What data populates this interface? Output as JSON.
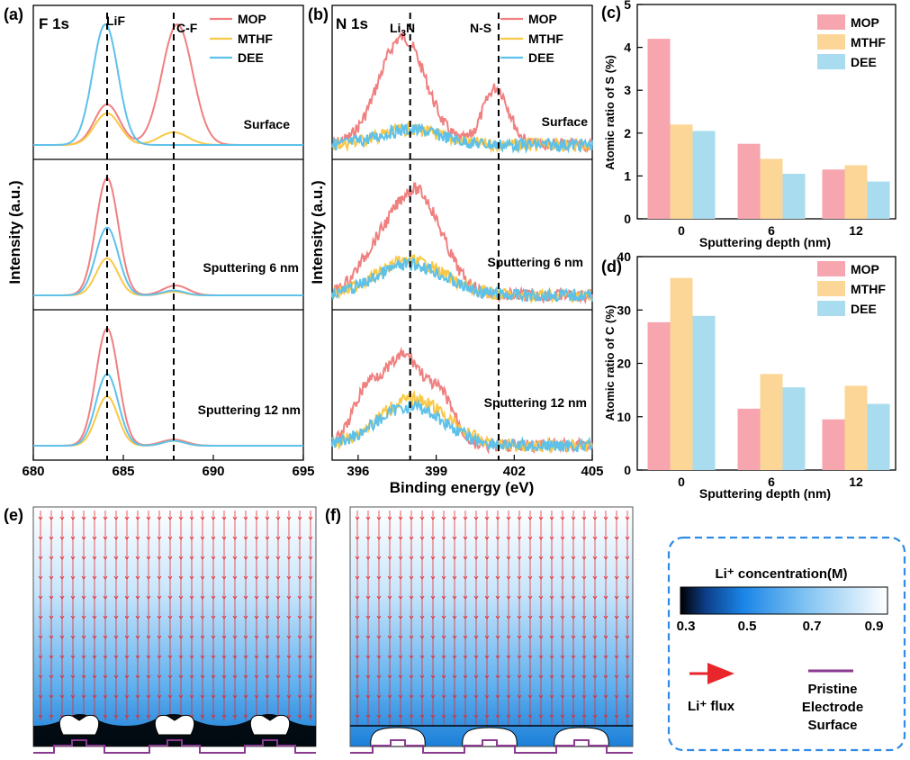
{
  "colors": {
    "MOP": "#f08080",
    "MTHF": "#f9c846",
    "DEE": "#5ec1ea",
    "MOP_bar": "#f7a5ae",
    "MTHF_bar": "#fcd697",
    "DEE_bar": "#a9dcee",
    "flux": "#e8262b",
    "electrode": "#8a3b8f",
    "legend_border": "#2f8be6"
  },
  "panel_labels": {
    "a": "(a)",
    "b": "(b)",
    "c": "(c)",
    "d": "(d)",
    "e": "(e)",
    "f": "(f)"
  },
  "legend_names": [
    "MOP",
    "MTHF",
    "DEE"
  ],
  "chart_data": [
    {
      "id": "a",
      "type": "line",
      "title": "F 1s",
      "xlabel": "",
      "ylabel": "Intensity (a.u.)",
      "xlim": [
        680,
        695
      ],
      "xticks": [
        "680",
        "685",
        "690",
        "695"
      ],
      "reference_lines": [
        {
          "x": 684.1,
          "label": "LiF"
        },
        {
          "x": 687.8,
          "label": "C-F"
        }
      ],
      "subpanels": [
        {
          "label": "Surface",
          "series": [
            {
              "name": "MOP",
              "peaks": [
                {
                  "x": 684.1,
                  "height": 0.32,
                  "width": 0.7
                },
                {
                  "x": 688.0,
                  "height": 0.95,
                  "width": 0.85
                }
              ]
            },
            {
              "name": "MTHF",
              "peaks": [
                {
                  "x": 684.1,
                  "height": 0.25,
                  "width": 0.7
                },
                {
                  "x": 687.8,
                  "height": 0.1,
                  "width": 0.8
                }
              ]
            },
            {
              "name": "DEE",
              "peaks": [
                {
                  "x": 684.0,
                  "height": 0.95,
                  "width": 0.7
                }
              ]
            }
          ]
        },
        {
          "label": "Sputtering 6 nm",
          "series": [
            {
              "name": "MOP",
              "peaks": [
                {
                  "x": 684.1,
                  "height": 0.95,
                  "width": 0.62
                },
                {
                  "x": 687.9,
                  "height": 0.08,
                  "width": 0.7
                }
              ]
            },
            {
              "name": "MTHF",
              "peaks": [
                {
                  "x": 684.1,
                  "height": 0.3,
                  "width": 0.6
                },
                {
                  "x": 687.8,
                  "height": 0.03,
                  "width": 0.6
                }
              ]
            },
            {
              "name": "DEE",
              "peaks": [
                {
                  "x": 684.1,
                  "height": 0.55,
                  "width": 0.62
                },
                {
                  "x": 687.8,
                  "height": 0.04,
                  "width": 0.6
                }
              ]
            }
          ]
        },
        {
          "label": "Sputtering 12 nm",
          "series": [
            {
              "name": "MOP",
              "peaks": [
                {
                  "x": 684.1,
                  "height": 0.95,
                  "width": 0.62
                },
                {
                  "x": 687.8,
                  "height": 0.05,
                  "width": 0.7
                }
              ]
            },
            {
              "name": "MTHF",
              "peaks": [
                {
                  "x": 684.1,
                  "height": 0.4,
                  "width": 0.6
                },
                {
                  "x": 687.8,
                  "height": 0.04,
                  "width": 0.6
                }
              ]
            },
            {
              "name": "DEE",
              "peaks": [
                {
                  "x": 684.1,
                  "height": 0.58,
                  "width": 0.62
                },
                {
                  "x": 687.8,
                  "height": 0.04,
                  "width": 0.6
                }
              ]
            }
          ]
        }
      ]
    },
    {
      "id": "b",
      "type": "line",
      "title": "N 1s",
      "xlabel": "Binding energy (eV)",
      "ylabel": "Intensity (a.u.)",
      "xlim": [
        395,
        405
      ],
      "xticks": [
        "396",
        "399",
        "402",
        "405"
      ],
      "reference_lines": [
        {
          "x": 398.0,
          "label": "Li3N"
        },
        {
          "x": 401.4,
          "label": "N-S"
        }
      ],
      "subpanels": [
        {
          "label": "Surface",
          "series": [
            {
              "name": "MOP",
              "peaks": [
                {
                  "x": 397.7,
                  "height": 0.85,
                  "width": 0.9
                },
                {
                  "x": 401.3,
                  "height": 0.45,
                  "width": 0.5
                }
              ]
            },
            {
              "name": "MTHF",
              "peaks": [
                {
                  "x": 398.0,
                  "height": 0.12,
                  "width": 1.2
                }
              ]
            },
            {
              "name": "DEE",
              "peaks": [
                {
                  "x": 398.0,
                  "height": 0.12,
                  "width": 1.2
                }
              ]
            }
          ]
        },
        {
          "label": "Sputtering 6 nm",
          "series": [
            {
              "name": "MOP",
              "peaks": [
                {
                  "x": 398.2,
                  "height": 0.85,
                  "width": 1.0
                },
                {
                  "x": 396.5,
                  "height": 0.2,
                  "width": 0.7
                }
              ]
            },
            {
              "name": "MTHF",
              "peaks": [
                {
                  "x": 398.0,
                  "height": 0.28,
                  "width": 1.3
                }
              ]
            },
            {
              "name": "DEE",
              "peaks": [
                {
                  "x": 398.0,
                  "height": 0.25,
                  "width": 1.3
                }
              ]
            }
          ]
        },
        {
          "label": "Sputtering 12 nm",
          "series": [
            {
              "name": "MOP",
              "peaks": [
                {
                  "x": 397.8,
                  "height": 0.72,
                  "width": 0.8
                },
                {
                  "x": 396.3,
                  "height": 0.38,
                  "width": 0.55
                },
                {
                  "x": 399.3,
                  "height": 0.3,
                  "width": 0.5
                }
              ]
            },
            {
              "name": "MTHF",
              "peaks": [
                {
                  "x": 398.1,
                  "height": 0.38,
                  "width": 1.3
                }
              ]
            },
            {
              "name": "DEE",
              "peaks": [
                {
                  "x": 398.0,
                  "height": 0.32,
                  "width": 1.3
                }
              ]
            }
          ]
        }
      ]
    },
    {
      "id": "c",
      "type": "bar",
      "xlabel": "Sputtering depth (nm)",
      "ylabel": "Atomic ratio of S (%)",
      "ylim": [
        0,
        5
      ],
      "yticks": [
        "0",
        "1",
        "2",
        "3",
        "4",
        "5"
      ],
      "categories": [
        "0",
        "6",
        "12"
      ],
      "series": [
        {
          "name": "MOP",
          "values": [
            4.2,
            1.75,
            1.15
          ]
        },
        {
          "name": "MTHF",
          "values": [
            2.2,
            1.4,
            1.25
          ]
        },
        {
          "name": "DEE",
          "values": [
            2.05,
            1.05,
            0.87
          ]
        }
      ]
    },
    {
      "id": "d",
      "type": "bar",
      "xlabel": "Sputtering depth (nm)",
      "ylabel": "Atomic ratio of C (%)",
      "ylim": [
        0,
        40
      ],
      "yticks": [
        "0",
        "10",
        "20",
        "30",
        "40"
      ],
      "categories": [
        "0",
        "6",
        "12"
      ],
      "series": [
        {
          "name": "MOP",
          "values": [
            27.7,
            11.5,
            9.5
          ]
        },
        {
          "name": "MTHF",
          "values": [
            36,
            18,
            15.8
          ]
        },
        {
          "name": "DEE",
          "values": [
            28.9,
            15.5,
            12.4
          ]
        }
      ]
    }
  ],
  "simulation": {
    "legend_title": "Li⁺ concentration(M)",
    "colorbar_ticks": [
      "0.3",
      "0.5",
      "0.7",
      "0.9"
    ],
    "flux_label": "Li⁺ flux",
    "electrode_label_lines": [
      "Pristine",
      "Electrode",
      "Surface"
    ]
  }
}
